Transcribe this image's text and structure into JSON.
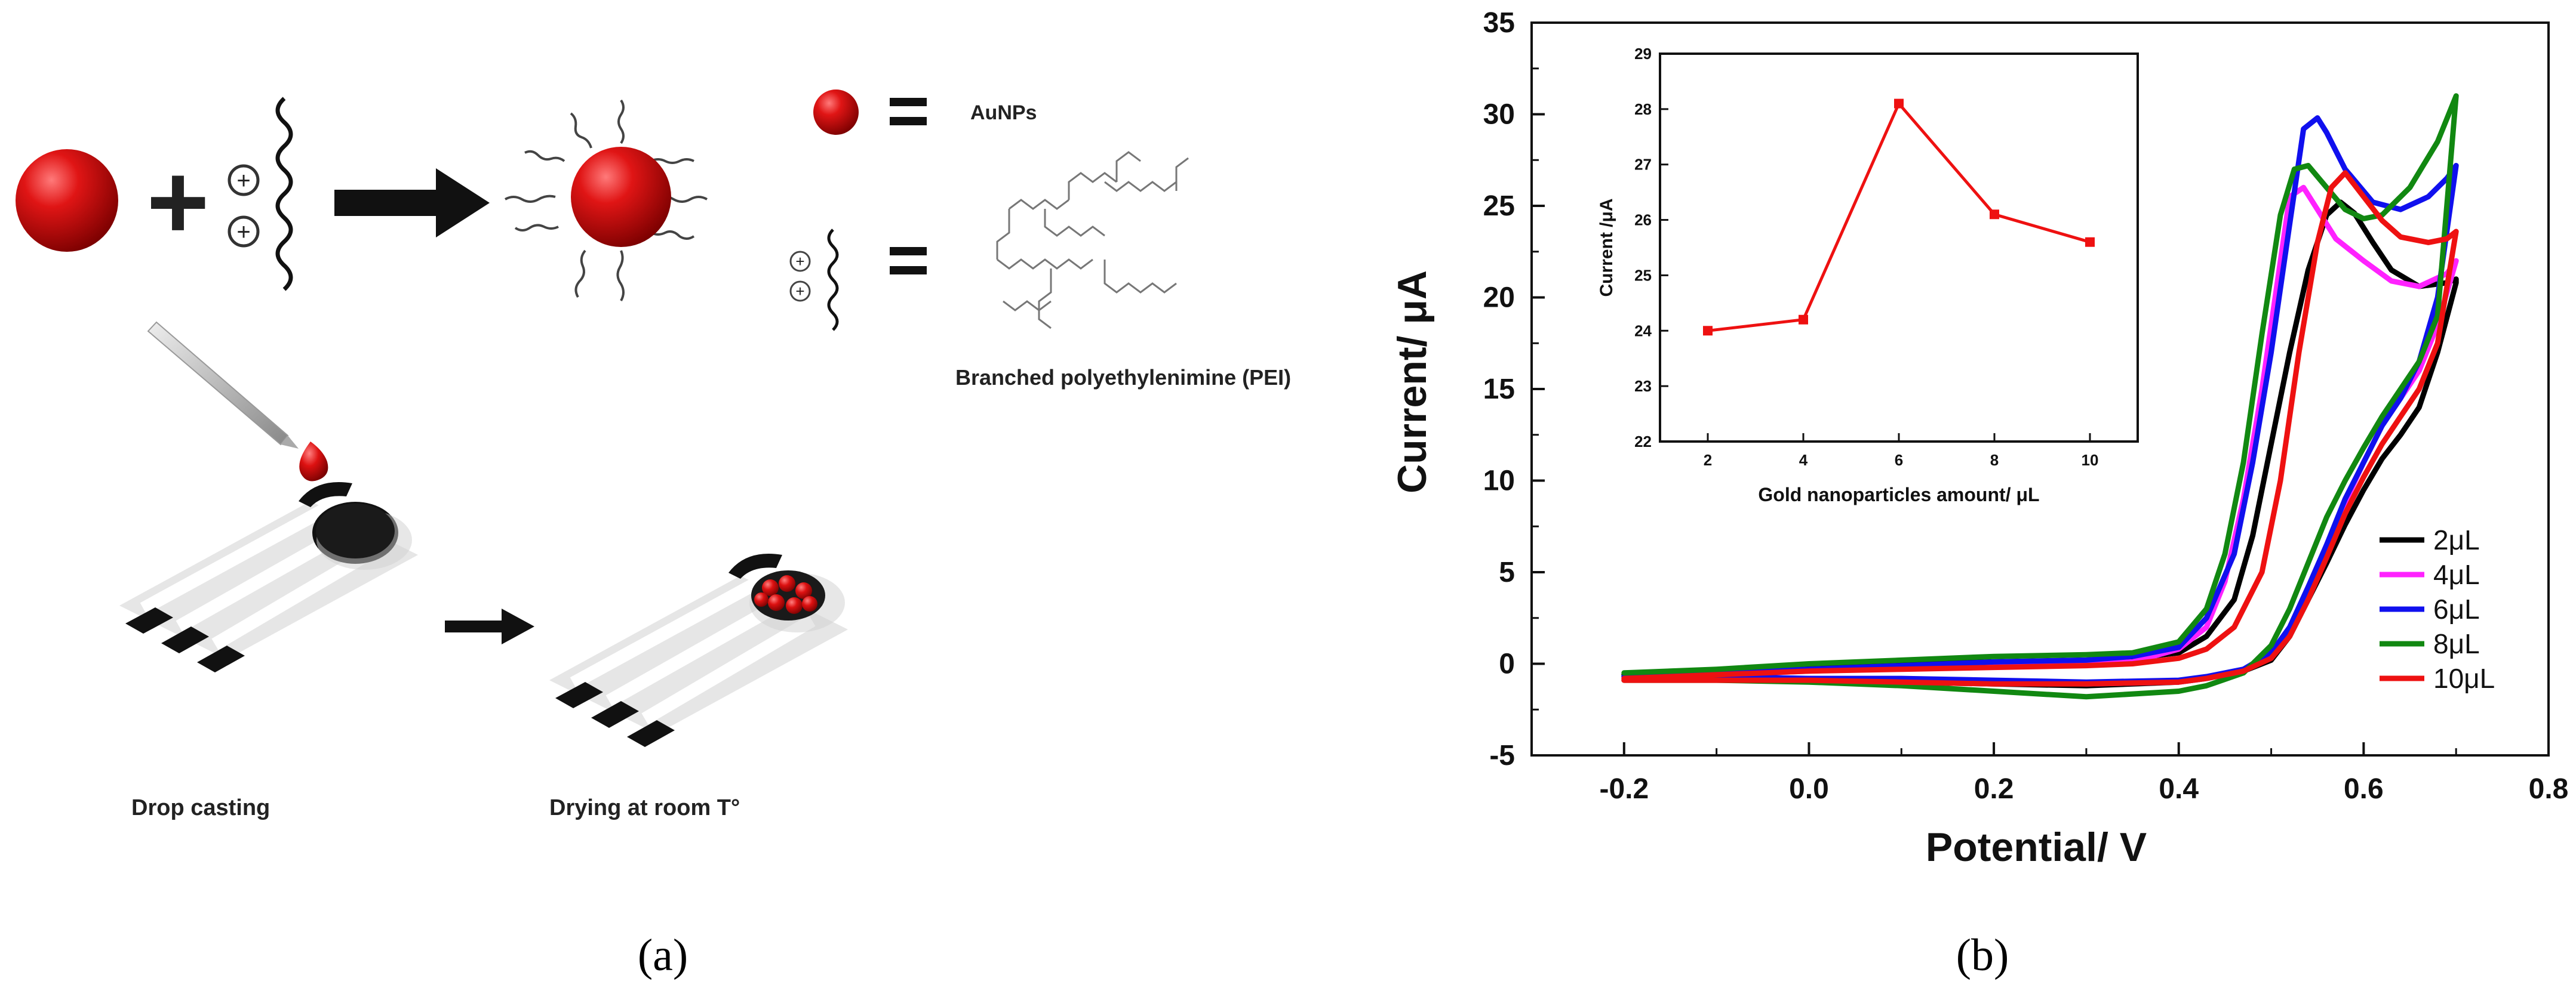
{
  "panel_a": {
    "caption": "(a)",
    "legend_aunps": "AuNPs",
    "legend_pei": "Branched polyethylenimine (PEI)",
    "step_drop": "Drop casting",
    "step_dry": "Drying at room T°",
    "plus_sign": "+",
    "equals_sign": "=",
    "charge_plus": "+"
  },
  "panel_b": {
    "caption": "(b)"
  },
  "colors": {
    "series_2": "#000000",
    "series_4": "#ff22ff",
    "series_6": "#1010ee",
    "series_8": "#118811",
    "series_10": "#ee1111",
    "gold_np": "#e01515"
  },
  "chart_data": [
    {
      "type": "line",
      "title": "",
      "xlabel": "Potential/ V",
      "ylabel": "Current/ μA",
      "xlim": [
        -0.3,
        0.8
      ],
      "ylim": [
        -5,
        35
      ],
      "x_ticks": [
        "-0.2",
        "0.0",
        "0.2",
        "0.4",
        "0.6",
        "0.8"
      ],
      "y_ticks": [
        "-5",
        "0",
        "5",
        "10",
        "15",
        "20",
        "25",
        "30",
        "35"
      ],
      "legend_position": "bottom-right",
      "series": [
        {
          "name": "2μL",
          "color": "#000000",
          "forward": [
            [
              -0.2,
              -0.6
            ],
            [
              -0.1,
              -0.4
            ],
            [
              0.0,
              -0.2
            ],
            [
              0.1,
              0.0
            ],
            [
              0.2,
              0.1
            ],
            [
              0.3,
              0.2
            ],
            [
              0.35,
              0.3
            ],
            [
              0.4,
              0.6
            ],
            [
              0.43,
              1.5
            ],
            [
              0.46,
              3.5
            ],
            [
              0.48,
              7.0
            ],
            [
              0.5,
              12.0
            ],
            [
              0.52,
              17.0
            ],
            [
              0.54,
              21.5
            ],
            [
              0.56,
              24.5
            ],
            [
              0.575,
              25.2
            ],
            [
              0.59,
              24.6
            ],
            [
              0.61,
              23.0
            ],
            [
              0.63,
              21.5
            ],
            [
              0.66,
              20.6
            ],
            [
              0.69,
              20.8
            ],
            [
              0.7,
              21.0
            ]
          ],
          "backward": [
            [
              0.7,
              20.8
            ],
            [
              0.68,
              17.0
            ],
            [
              0.66,
              14.0
            ],
            [
              0.64,
              12.5
            ],
            [
              0.62,
              11.2
            ],
            [
              0.6,
              9.5
            ],
            [
              0.58,
              7.6
            ],
            [
              0.56,
              5.5
            ],
            [
              0.54,
              3.5
            ],
            [
              0.52,
              1.5
            ],
            [
              0.5,
              0.2
            ],
            [
              0.47,
              -0.4
            ],
            [
              0.43,
              -0.8
            ],
            [
              0.4,
              -1.0
            ],
            [
              0.3,
              -1.2
            ],
            [
              0.2,
              -1.1
            ],
            [
              0.1,
              -1.0
            ],
            [
              0.0,
              -0.9
            ],
            [
              -0.1,
              -0.8
            ],
            [
              -0.2,
              -0.7
            ]
          ]
        },
        {
          "name": "4μL",
          "color": "#ff22ff",
          "forward": [
            [
              -0.2,
              -0.8
            ],
            [
              -0.1,
              -0.6
            ],
            [
              0.0,
              -0.4
            ],
            [
              0.1,
              -0.2
            ],
            [
              0.2,
              -0.1
            ],
            [
              0.3,
              0.0
            ],
            [
              0.35,
              0.1
            ],
            [
              0.4,
              0.8
            ],
            [
              0.43,
              2.0
            ],
            [
              0.45,
              4.5
            ],
            [
              0.47,
              9.0
            ],
            [
              0.49,
              15.0
            ],
            [
              0.51,
              22.0
            ],
            [
              0.52,
              25.5
            ],
            [
              0.535,
              26.0
            ],
            [
              0.55,
              24.8
            ],
            [
              0.57,
              23.2
            ],
            [
              0.6,
              22.0
            ],
            [
              0.63,
              20.9
            ],
            [
              0.66,
              20.6
            ],
            [
              0.69,
              21.3
            ],
            [
              0.7,
              22.0
            ]
          ],
          "backward": [
            [
              0.7,
              22.0
            ],
            [
              0.68,
              18.5
            ],
            [
              0.66,
              16.0
            ],
            [
              0.64,
              14.5
            ],
            [
              0.62,
              13.0
            ],
            [
              0.6,
              11.0
            ],
            [
              0.58,
              8.8
            ],
            [
              0.56,
              6.5
            ],
            [
              0.54,
              4.0
            ],
            [
              0.52,
              1.8
            ],
            [
              0.5,
              0.5
            ],
            [
              0.47,
              -0.3
            ],
            [
              0.43,
              -0.8
            ],
            [
              0.4,
              -1.0
            ],
            [
              0.3,
              -1.1
            ],
            [
              0.2,
              -1.0
            ],
            [
              0.1,
              -0.9
            ],
            [
              0.0,
              -0.8
            ],
            [
              -0.1,
              -0.8
            ],
            [
              -0.2,
              -0.8
            ]
          ]
        },
        {
          "name": "6μL",
          "color": "#1010ee",
          "forward": [
            [
              -0.2,
              -0.7
            ],
            [
              -0.1,
              -0.5
            ],
            [
              0.0,
              -0.3
            ],
            [
              0.1,
              -0.1
            ],
            [
              0.2,
              0.1
            ],
            [
              0.3,
              0.2
            ],
            [
              0.35,
              0.4
            ],
            [
              0.4,
              0.9
            ],
            [
              0.43,
              2.5
            ],
            [
              0.46,
              6.0
            ],
            [
              0.48,
              11.0
            ],
            [
              0.5,
              17.0
            ],
            [
              0.52,
              24.0
            ],
            [
              0.535,
              29.2
            ],
            [
              0.55,
              29.8
            ],
            [
              0.56,
              29.0
            ],
            [
              0.58,
              27.0
            ],
            [
              0.61,
              25.2
            ],
            [
              0.64,
              24.8
            ],
            [
              0.67,
              25.5
            ],
            [
              0.69,
              26.5
            ],
            [
              0.7,
              27.2
            ]
          ],
          "backward": [
            [
              0.7,
              27.2
            ],
            [
              0.68,
              20.0
            ],
            [
              0.66,
              16.5
            ],
            [
              0.64,
              14.5
            ],
            [
              0.62,
              13.0
            ],
            [
              0.6,
              11.0
            ],
            [
              0.58,
              9.0
            ],
            [
              0.56,
              6.5
            ],
            [
              0.54,
              4.2
            ],
            [
              0.52,
              2.0
            ],
            [
              0.5,
              0.6
            ],
            [
              0.47,
              -0.3
            ],
            [
              0.43,
              -0.7
            ],
            [
              0.4,
              -0.9
            ],
            [
              0.3,
              -1.0
            ],
            [
              0.2,
              -0.9
            ],
            [
              0.1,
              -0.8
            ],
            [
              0.0,
              -0.8
            ],
            [
              -0.1,
              -0.7
            ],
            [
              -0.2,
              -0.7
            ]
          ]
        },
        {
          "name": "8μL",
          "color": "#118811",
          "forward": [
            [
              -0.2,
              -0.5
            ],
            [
              -0.1,
              -0.3
            ],
            [
              0.0,
              0.0
            ],
            [
              0.1,
              0.2
            ],
            [
              0.2,
              0.4
            ],
            [
              0.3,
              0.5
            ],
            [
              0.35,
              0.6
            ],
            [
              0.4,
              1.2
            ],
            [
              0.43,
              3.0
            ],
            [
              0.45,
              6.0
            ],
            [
              0.47,
              11.0
            ],
            [
              0.49,
              18.0
            ],
            [
              0.51,
              24.5
            ],
            [
              0.525,
              27.0
            ],
            [
              0.54,
              27.2
            ],
            [
              0.56,
              26.0
            ],
            [
              0.58,
              24.8
            ],
            [
              0.6,
              24.3
            ],
            [
              0.62,
              24.5
            ],
            [
              0.65,
              26.0
            ],
            [
              0.68,
              28.5
            ],
            [
              0.7,
              31.0
            ]
          ],
          "backward": [
            [
              0.7,
              31.0
            ],
            [
              0.68,
              19.0
            ],
            [
              0.66,
              16.5
            ],
            [
              0.64,
              15.0
            ],
            [
              0.62,
              13.5
            ],
            [
              0.6,
              11.8
            ],
            [
              0.58,
              10.0
            ],
            [
              0.56,
              8.0
            ],
            [
              0.54,
              5.5
            ],
            [
              0.52,
              3.0
            ],
            [
              0.5,
              1.0
            ],
            [
              0.47,
              -0.5
            ],
            [
              0.43,
              -1.2
            ],
            [
              0.4,
              -1.5
            ],
            [
              0.3,
              -1.8
            ],
            [
              0.2,
              -1.5
            ],
            [
              0.1,
              -1.2
            ],
            [
              0.0,
              -1.0
            ],
            [
              -0.1,
              -0.9
            ],
            [
              -0.2,
              -0.9
            ]
          ]
        },
        {
          "name": "10μL",
          "color": "#ee1111",
          "forward": [
            [
              -0.2,
              -0.8
            ],
            [
              -0.1,
              -0.6
            ],
            [
              0.0,
              -0.4
            ],
            [
              0.1,
              -0.3
            ],
            [
              0.2,
              -0.2
            ],
            [
              0.3,
              -0.1
            ],
            [
              0.35,
              0.0
            ],
            [
              0.4,
              0.3
            ],
            [
              0.43,
              0.8
            ],
            [
              0.46,
              2.0
            ],
            [
              0.49,
              5.0
            ],
            [
              0.51,
              10.0
            ],
            [
              0.53,
              17.0
            ],
            [
              0.55,
              23.0
            ],
            [
              0.565,
              26.0
            ],
            [
              0.58,
              26.8
            ],
            [
              0.6,
              25.5
            ],
            [
              0.62,
              24.2
            ],
            [
              0.64,
              23.3
            ],
            [
              0.67,
              23.0
            ],
            [
              0.69,
              23.2
            ],
            [
              0.7,
              23.6
            ]
          ],
          "backward": [
            [
              0.7,
              23.6
            ],
            [
              0.68,
              17.5
            ],
            [
              0.66,
              15.0
            ],
            [
              0.64,
              13.5
            ],
            [
              0.62,
              12.0
            ],
            [
              0.6,
              10.2
            ],
            [
              0.58,
              8.2
            ],
            [
              0.56,
              5.8
            ],
            [
              0.54,
              3.5
            ],
            [
              0.52,
              1.5
            ],
            [
              0.5,
              0.3
            ],
            [
              0.47,
              -0.4
            ],
            [
              0.43,
              -0.8
            ],
            [
              0.4,
              -1.0
            ],
            [
              0.3,
              -1.1
            ],
            [
              0.2,
              -1.1
            ],
            [
              0.1,
              -1.0
            ],
            [
              0.0,
              -0.9
            ],
            [
              -0.1,
              -0.9
            ],
            [
              -0.2,
              -0.9
            ]
          ]
        }
      ]
    },
    {
      "type": "line",
      "title": "",
      "xlabel": "Gold nanoparticles amount/ μL",
      "ylabel": "Current /μA",
      "xlim": [
        1,
        11
      ],
      "ylim": [
        22,
        29
      ],
      "x_ticks": [
        "2",
        "4",
        "6",
        "8",
        "10"
      ],
      "y_ticks": [
        "22",
        "23",
        "24",
        "25",
        "26",
        "27",
        "28",
        "29"
      ],
      "color": "#ee1111",
      "x": [
        2,
        4,
        6,
        8,
        10
      ],
      "values": [
        24.0,
        24.2,
        28.1,
        26.1,
        25.6
      ]
    }
  ]
}
